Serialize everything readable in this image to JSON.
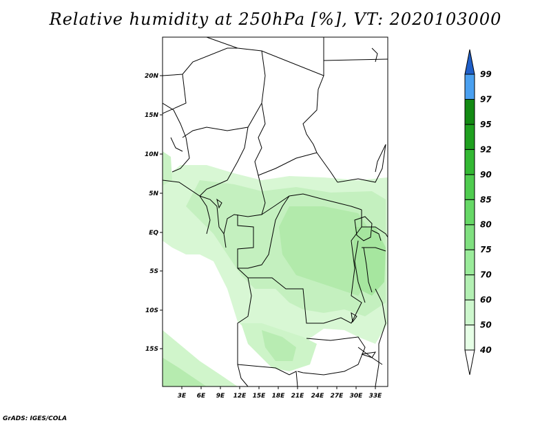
{
  "title": "Relative humidity at 250hPa [%], VT: 2020103000",
  "credit": "GrADS: IGES/COLA",
  "map": {
    "lat_labels": [
      "20N",
      "15N",
      "10N",
      "5N",
      "EQ",
      "5S",
      "10S",
      "15S"
    ],
    "lon_labels": [
      "3E",
      "6E",
      "9E",
      "12E",
      "15E",
      "18E",
      "21E",
      "24E",
      "27E",
      "30E",
      "33E"
    ]
  },
  "colorbar": {
    "labels": [
      "40",
      "50",
      "60",
      "70",
      "75",
      "80",
      "85",
      "90",
      "92",
      "95",
      "97",
      "99"
    ],
    "colors": [
      "#ffffff",
      "#e6ffe6",
      "#cdf7cd",
      "#b3f0b3",
      "#9aeb9a",
      "#80e080",
      "#66d866",
      "#4fcc4f",
      "#33b833",
      "#1fa01f",
      "#138a13",
      "#4aa0f0",
      "#2e7fe0",
      "#1f5fc8"
    ]
  },
  "colors": {
    "humid_light": "#d8f7d4",
    "humid_mid": "#bfefba",
    "humid_strong": "#a6e69f",
    "border": "#000000"
  }
}
